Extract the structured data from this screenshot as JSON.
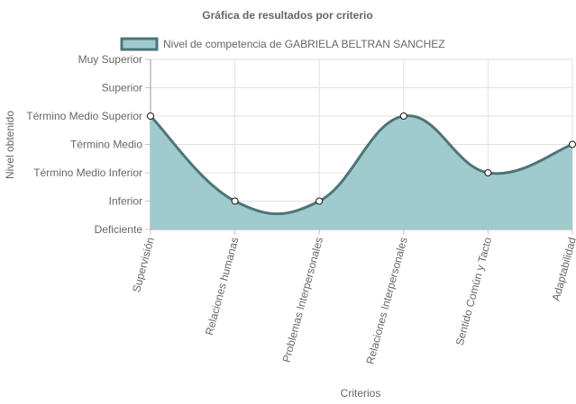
{
  "chart_data": {
    "type": "area",
    "title": "Gráfica de resultados por criterio",
    "xlabel": "Criterios",
    "ylabel": "Nivel obtenido",
    "y_levels": [
      "Deficiente",
      "Inferior",
      "Término Medio Inferior",
      "Término Medio",
      "Término Medio Superior",
      "Superior",
      "Muy Superior"
    ],
    "categories": [
      "Supervisión",
      "Relaciones humanas",
      "Problemas Interpersonales",
      "Relaciones Interpersonales",
      "Sentido Común y Tacto",
      "Adaptabilidad"
    ],
    "series": [
      {
        "name": "Nivel de competencia de GABRIELA BELTRAN SANCHEZ",
        "values": [
          4,
          1,
          1,
          4,
          2,
          3
        ],
        "value_labels": [
          "Término Medio Superior",
          "Inferior",
          "Inferior",
          "Término Medio Superior",
          "Término Medio Inferior",
          "Término Medio"
        ],
        "fill_color": "#a0cbce",
        "line_color": "#4e7476"
      }
    ],
    "ylim": [
      0,
      6
    ],
    "grid": true,
    "legend_position": "top"
  }
}
